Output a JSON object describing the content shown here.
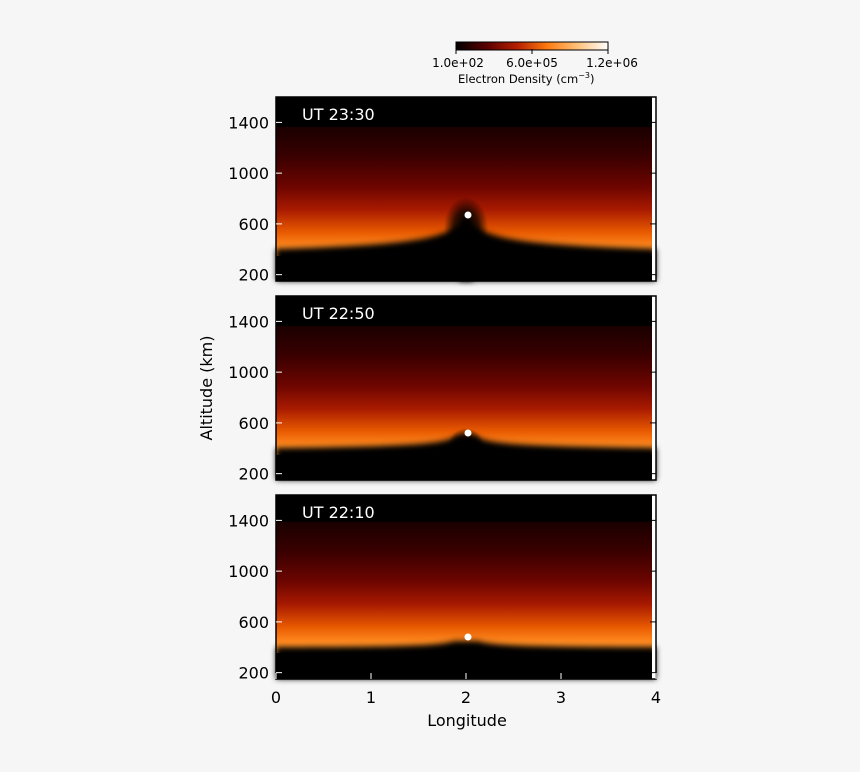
{
  "chart_data": {
    "type": "heatmap",
    "colorbar": {
      "label_main": "Electron Density (cm",
      "label_exp": "−3",
      "label_close": ")",
      "ticks": [
        "1.0e+02",
        "6.0e+05",
        "1.2e+06"
      ],
      "range": [
        100,
        1200000
      ],
      "colormap": [
        "#000000",
        "#5a0000",
        "#b41e00",
        "#ff7a10",
        "#ffc27a",
        "#ffffff"
      ]
    },
    "xlabel": "Longitude",
    "ylabel": "Altitude (km)",
    "xlim": [
      0,
      4
    ],
    "ylim": [
      150,
      1600
    ],
    "x_ticks": [
      0,
      1,
      2,
      3,
      4
    ],
    "y_ticks": [
      200,
      600,
      1000,
      1400
    ],
    "panels": [
      {
        "time_label": "UT 23:30",
        "marker": {
          "longitude": 2.0,
          "altitude": 695
        }
      },
      {
        "time_label": "UT 22:50",
        "marker": {
          "longitude": 2.0,
          "altitude": 550
        }
      },
      {
        "time_label": "UT 22:10",
        "marker": {
          "longitude": 2.0,
          "altitude": 505
        }
      }
    ]
  }
}
